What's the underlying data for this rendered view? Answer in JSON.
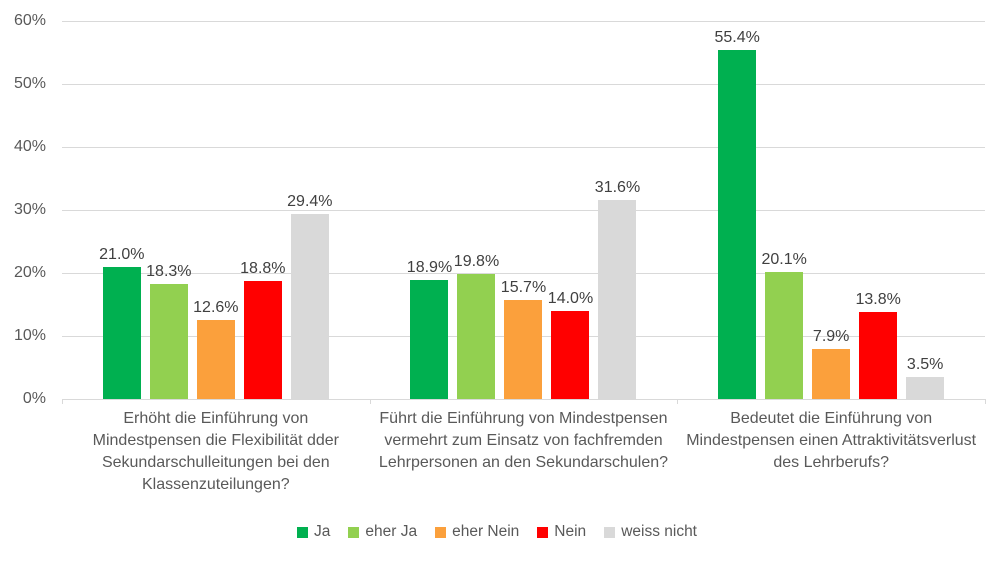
{
  "chart_data": {
    "type": "bar",
    "title": "",
    "xlabel": "",
    "ylabel": "",
    "categories": [
      "Erhöht die Einführung von Mindestpensen die Flexibilität dder Sekundarschulleitungen bei den Klassenzuteilungen?",
      "Führt die Einführung von Mindestpensen vermehrt zum Einsatz von fachfremden Lehrpersonen an den Sekundarschulen?",
      "Bedeutet die Einführung von Mindestpensen einen Attraktivitätsverlust des Lehrberufs?"
    ],
    "series": [
      {
        "name": "Ja",
        "color": "#00B050",
        "values": [
          21.0,
          18.9,
          55.4
        ],
        "labels": [
          "21.0%",
          "18.9%",
          "55.4%"
        ]
      },
      {
        "name": "eher Ja",
        "color": "#92D050",
        "values": [
          18.3,
          19.8,
          20.1
        ],
        "labels": [
          "18.3%",
          "19.8%",
          "20.1%"
        ]
      },
      {
        "name": "eher Nein",
        "color": "#FBA03C",
        "values": [
          12.6,
          15.7,
          7.9
        ],
        "labels": [
          "12.6%",
          "15.7%",
          "7.9%"
        ]
      },
      {
        "name": "Nein",
        "color": "#FF0000",
        "values": [
          18.8,
          14.0,
          13.8
        ],
        "labels": [
          "18.8%",
          "14.0%",
          "13.8%"
        ]
      },
      {
        "name": "weiss nicht",
        "color": "#D9D9D9",
        "values": [
          29.4,
          31.6,
          3.5
        ],
        "labels": [
          "29.4%",
          "31.6%",
          "3.5%"
        ]
      }
    ],
    "y_axis": {
      "min": 0,
      "max": 60,
      "step": 10,
      "tick_labels": [
        "0%",
        "10%",
        "20%",
        "30%",
        "40%",
        "50%",
        "60%"
      ]
    },
    "ylim": [
      0,
      60
    ],
    "grid": true,
    "legend_position": "bottom"
  },
  "style": {
    "background": "#FFFFFF",
    "gridline_color": "#D9D9D9",
    "axis_line_color": "#D9D9D9",
    "axis_text_color": "#595959",
    "data_label_color": "#404040",
    "category_text_color": "#595959",
    "legend_text_color": "#595959"
  }
}
